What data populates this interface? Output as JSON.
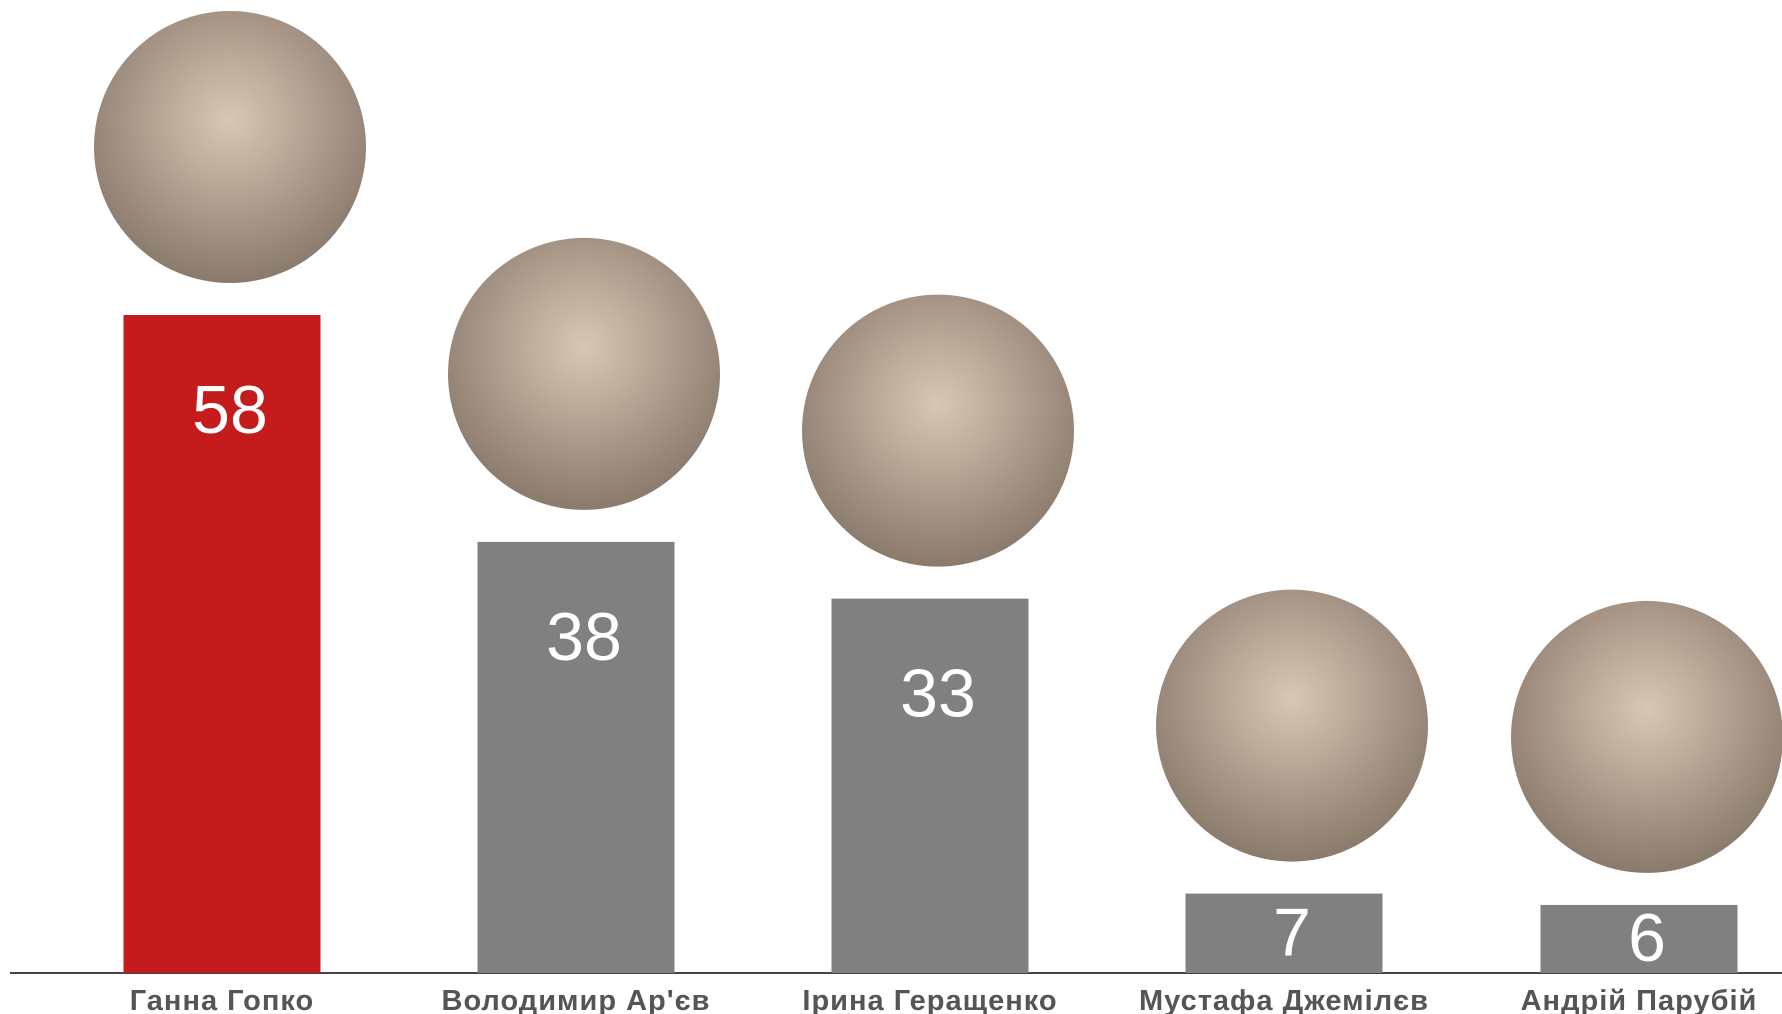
{
  "chart_data": {
    "type": "bar",
    "categories": [
      "Ганна Гопко",
      "Володимир Ар'єв",
      "Ірина Геращенко",
      "Мустафа Джемілєв",
      "Андрій Парубій"
    ],
    "values": [
      58,
      38,
      33,
      7,
      6
    ],
    "colors": [
      "#c41c1c",
      "#808080",
      "#808080",
      "#808080",
      "#808080"
    ]
  }
}
